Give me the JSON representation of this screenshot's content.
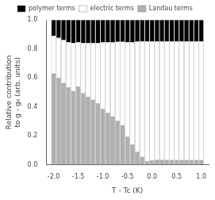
{
  "chart_data": {
    "type": "bar",
    "stacked": true,
    "xlabel": "T - Tc (K)",
    "ylabel": "Relative contribution\nto g - g₀ (arb. units)",
    "x": [
      -2.0,
      -1.9,
      -1.8,
      -1.7,
      -1.6,
      -1.5,
      -1.4,
      -1.3,
      -1.2,
      -1.1,
      -1.0,
      -0.9,
      -0.8,
      -0.7,
      -0.6,
      -0.5,
      -0.4,
      -0.3,
      -0.2,
      -0.1,
      0.0,
      0.1,
      0.2,
      0.3,
      0.4,
      0.5,
      0.6,
      0.7,
      0.8,
      0.9,
      1.0
    ],
    "series": [
      {
        "name": "Landau terms",
        "color": "#b0b0b0",
        "values": [
          0.63,
          0.6,
          0.565,
          0.535,
          0.51,
          0.54,
          0.495,
          0.47,
          0.45,
          0.425,
          0.385,
          0.36,
          0.335,
          0.305,
          0.275,
          0.195,
          0.14,
          0.09,
          0.055,
          0.025,
          0.03,
          0.035,
          0.035,
          0.033,
          0.033,
          0.033,
          0.033,
          0.033,
          0.033,
          0.033,
          0.033
        ]
      },
      {
        "name": "electric terms",
        "color": "#ffffff",
        "values": [
          0.26,
          0.275,
          0.295,
          0.31,
          0.33,
          0.305,
          0.345,
          0.37,
          0.39,
          0.415,
          0.46,
          0.485,
          0.51,
          0.543,
          0.573,
          0.652,
          0.707,
          0.76,
          0.797,
          0.827,
          0.822,
          0.817,
          0.817,
          0.819,
          0.819,
          0.819,
          0.819,
          0.819,
          0.819,
          0.819,
          0.819
        ]
      },
      {
        "name": "polymer terms",
        "color": "#000000",
        "values": [
          0.11,
          0.125,
          0.14,
          0.155,
          0.16,
          0.155,
          0.16,
          0.16,
          0.16,
          0.16,
          0.155,
          0.155,
          0.155,
          0.152,
          0.152,
          0.153,
          0.153,
          0.15,
          0.148,
          0.148,
          0.148,
          0.148,
          0.148,
          0.148,
          0.148,
          0.148,
          0.148,
          0.148,
          0.148,
          0.148,
          0.148
        ]
      }
    ],
    "xlim": [
      -2.15,
      1.15
    ],
    "ylim": [
      0,
      1
    ],
    "xticks": [
      {
        "value": -2.0,
        "label": "-2.0"
      },
      -1.5,
      {
        "value": -1.0,
        "label": "-1.0"
      },
      -0.5,
      {
        "value": 0.0,
        "label": "0.0"
      },
      0.5,
      {
        "value": 1.0,
        "label": "1.0"
      }
    ],
    "yticks": [
      {
        "value": 0.0,
        "label": "0.0"
      },
      0.2,
      0.4,
      0.6,
      0.8,
      {
        "value": 1.0,
        "label": "1.0"
      }
    ],
    "grid": false,
    "legend": "top"
  }
}
